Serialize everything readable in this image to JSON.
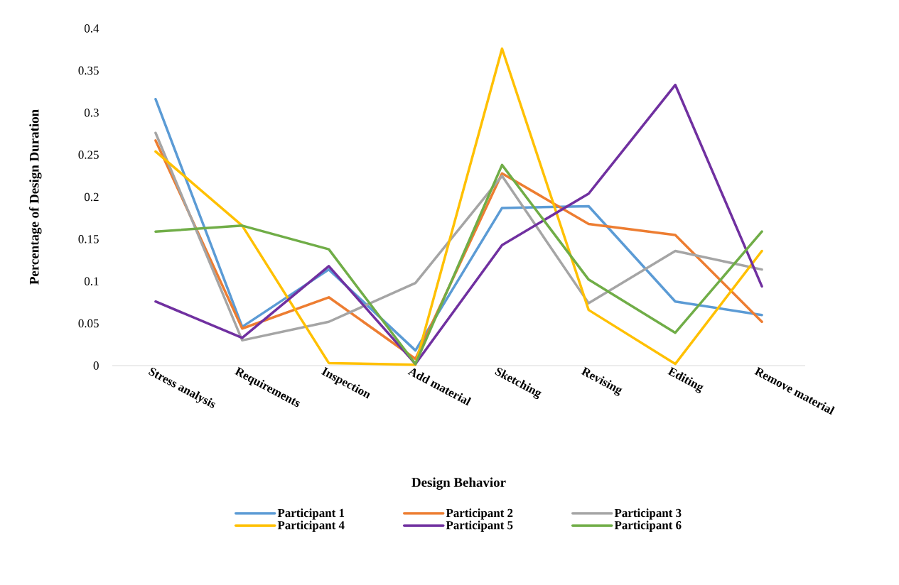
{
  "chart_data": {
    "type": "line",
    "xlabel": "Design Behavior",
    "ylabel": "Percentage of Design Duration",
    "categories": [
      "Stress analysis",
      "Requirements",
      "Inspection",
      "Add  material",
      "Sketching",
      "Revising",
      "Editing",
      "Remove material"
    ],
    "series": [
      {
        "name": "Participant 1",
        "color": "#5b9bd5",
        "values": [
          0.316,
          0.046,
          0.114,
          0.018,
          0.187,
          0.189,
          0.076,
          0.06
        ]
      },
      {
        "name": "Participant 2",
        "color": "#ed7d31",
        "values": [
          0.267,
          0.044,
          0.081,
          0.008,
          0.228,
          0.168,
          0.155,
          0.052
        ]
      },
      {
        "name": "Participant 3",
        "color": "#a5a5a5",
        "values": [
          0.276,
          0.03,
          0.052,
          0.098,
          0.225,
          0.074,
          0.136,
          0.114
        ]
      },
      {
        "name": "Participant 4",
        "color": "#ffc000",
        "values": [
          0.254,
          0.166,
          0.003,
          0.001,
          0.376,
          0.066,
          0.002,
          0.136
        ]
      },
      {
        "name": "Participant 5",
        "color": "#7030a0",
        "values": [
          0.076,
          0.033,
          0.118,
          0.002,
          0.143,
          0.204,
          0.333,
          0.094
        ]
      },
      {
        "name": "Participant 6",
        "color": "#70ad47",
        "values": [
          0.159,
          0.166,
          0.138,
          0.002,
          0.238,
          0.102,
          0.039,
          0.159
        ]
      }
    ],
    "ylim": [
      0,
      0.4
    ],
    "yticks": [
      0,
      0.05,
      0.1,
      0.15,
      0.2,
      0.25,
      0.3,
      0.35,
      0.4
    ],
    "grid": false,
    "legend": "bottom",
    "marker": "none",
    "line_style": "solid"
  }
}
